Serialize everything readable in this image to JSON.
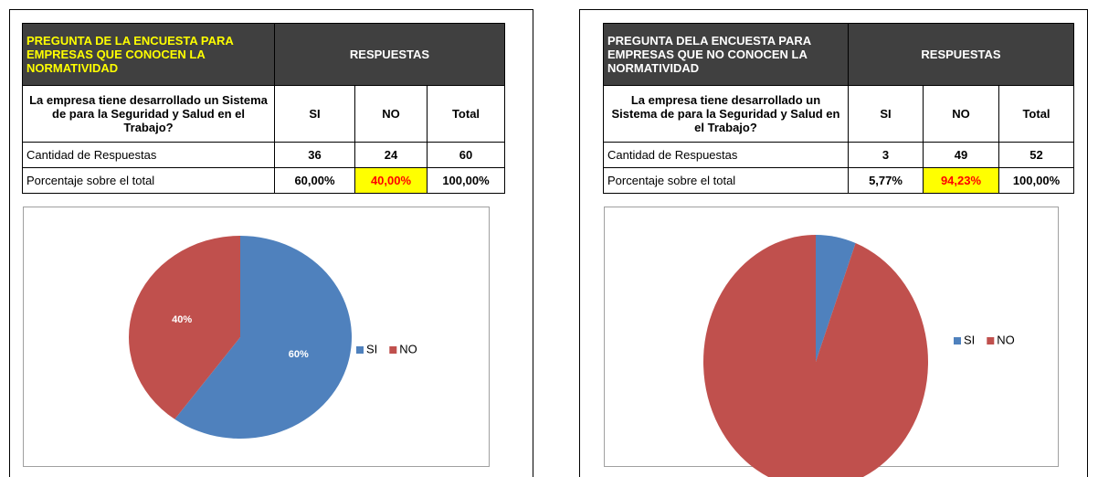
{
  "panels": [
    {
      "table": {
        "header": [
          "PREGUNTA DE LA ENCUESTA PARA EMPRESAS QUE CONOCEN LA NORMATIVIDAD",
          "RESPUESTAS"
        ],
        "rows": [
          [
            "La empresa tiene desarrollado un Sistema de para la Seguridad y Salud en el Trabajo?",
            "SI",
            "NO",
            "Total"
          ],
          [
            "Cantidad de Respuestas",
            "36",
            "24",
            "60"
          ],
          [
            "Porcentaje sobre el total",
            "60,00%",
            "40,00%",
            "100,00%"
          ]
        ]
      }
    },
    {
      "table": {
        "header": [
          "PREGUNTA DELA ENCUESTA PARA EMPRESAS QUE NO CONOCEN LA NORMATIVIDAD",
          "RESPUESTAS"
        ],
        "rows": [
          [
            "La empresa tiene desarrollado un Sistema de para la Seguridad y Salud en el Trabajo?",
            "SI",
            "NO",
            "Total"
          ],
          [
            "Cantidad de Respuestas",
            "3",
            "49",
            "52"
          ],
          [
            "Porcentaje sobre el total",
            "5,77%",
            "94,23%",
            "100,00%"
          ]
        ]
      }
    }
  ],
  "chart_data": [
    {
      "type": "pie",
      "categories": [
        "SI",
        "NO"
      ],
      "values": [
        60,
        40
      ],
      "value_labels": [
        "60%",
        "40%"
      ],
      "colors": [
        "#4f81bd",
        "#c0504d"
      ],
      "legend": "right"
    },
    {
      "type": "pie",
      "categories": [
        "SI",
        "NO"
      ],
      "values": [
        5.77,
        94.23
      ],
      "colors": [
        "#4f81bd",
        "#c0504d"
      ],
      "legend": "right"
    }
  ]
}
